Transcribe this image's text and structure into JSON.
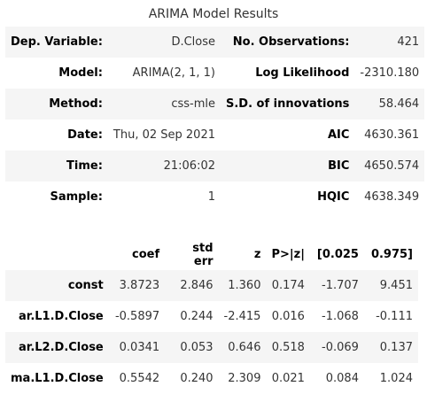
{
  "caption": "ARIMA Model Results",
  "summary": [
    {
      "l1": "Dep. Variable:",
      "v1": "D.Close",
      "l2": "No. Observations:",
      "v2": "421"
    },
    {
      "l1": "Model:",
      "v1": "ARIMA(2, 1, 1)",
      "l2": "Log Likelihood",
      "v2": "-2310.180"
    },
    {
      "l1": "Method:",
      "v1": "css-mle",
      "l2": "S.D. of innovations",
      "v2": "58.464"
    },
    {
      "l1": "Date:",
      "v1": "Thu, 02 Sep 2021",
      "l2": "AIC",
      "v2": "4630.361"
    },
    {
      "l1": "Time:",
      "v1": "21:06:02",
      "l2": "BIC",
      "v2": "4650.574"
    },
    {
      "l1": "Sample:",
      "v1": "1",
      "l2": "HQIC",
      "v2": "4638.349"
    }
  ],
  "coef_headers": [
    "",
    "coef",
    "std err",
    "z",
    "P>|z|",
    "[0.025",
    "0.975]"
  ],
  "coef_rows": [
    [
      "const",
      "3.8723",
      "2.846",
      "1.360",
      "0.174",
      "-1.707",
      "9.451"
    ],
    [
      "ar.L1.D.Close",
      "-0.5897",
      "0.244",
      "-2.415",
      "0.016",
      "-1.068",
      "-0.111"
    ],
    [
      "ar.L2.D.Close",
      "0.0341",
      "0.053",
      "0.646",
      "0.518",
      "-0.069",
      "0.137"
    ],
    [
      "ma.L1.D.Close",
      "0.5542",
      "0.240",
      "2.309",
      "0.021",
      "0.084",
      "1.024"
    ]
  ]
}
